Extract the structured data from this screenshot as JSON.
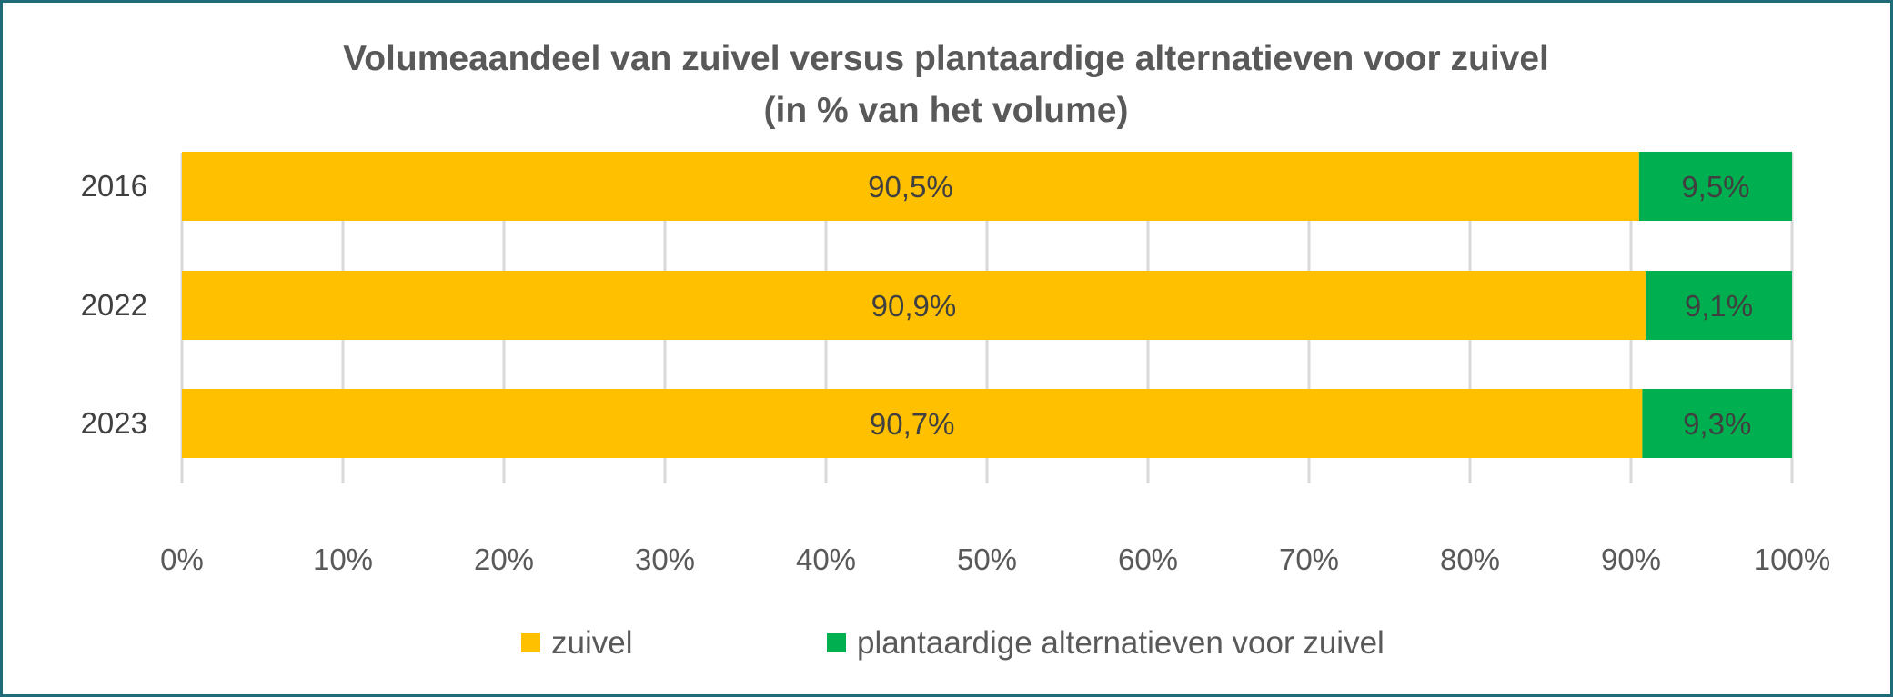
{
  "chart_data": {
    "type": "bar",
    "orientation": "horizontal",
    "stacked": "percent",
    "title_line1": "Volumeaandeel van zuivel versus plantaardige alternatieven voor zuivel",
    "title_line2": "(in % van het volume)",
    "categories": [
      "2016",
      "2022",
      "2023"
    ],
    "series": [
      {
        "name": "zuivel",
        "color": "#ffc000",
        "values": [
          90.5,
          90.9,
          90.7
        ],
        "labels": [
          "90,5%",
          "90,9%",
          "90,7%"
        ]
      },
      {
        "name": "plantaardige alternatieven voor zuivel",
        "color": "#00b050",
        "values": [
          9.5,
          9.1,
          9.3
        ],
        "labels": [
          "9,5%",
          "9,1%",
          "9,3%"
        ]
      }
    ],
    "xlim": [
      0,
      100
    ],
    "x_ticks": [
      "0%",
      "10%",
      "20%",
      "30%",
      "40%",
      "50%",
      "60%",
      "70%",
      "80%",
      "90%",
      "100%"
    ],
    "grid": true,
    "legend_position": "bottom"
  }
}
